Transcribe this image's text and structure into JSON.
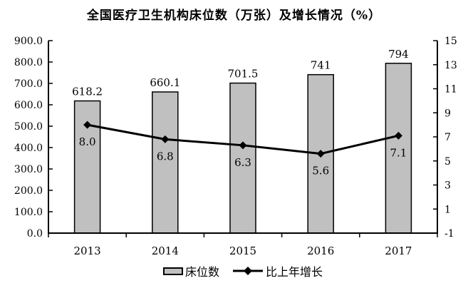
{
  "chart_data": {
    "type": "bar",
    "title": "全国医疗卫生机构床位数（万张）及增长情况（%）",
    "categories": [
      "2013",
      "2014",
      "2015",
      "2016",
      "2017"
    ],
    "series": [
      {
        "name": "床位数",
        "kind": "bar",
        "axis": "left",
        "values": [
          618.2,
          660.1,
          701.5,
          741,
          794
        ],
        "labels": [
          "618.2",
          "660.1",
          "701.5",
          "741",
          "794"
        ]
      },
      {
        "name": "比上年增长",
        "kind": "line",
        "axis": "right",
        "values": [
          8.0,
          6.8,
          6.3,
          5.6,
          7.1
        ],
        "labels": [
          "8.0",
          "6.8",
          "6.3",
          "5.6",
          "7.1"
        ]
      }
    ],
    "left_axis": {
      "min": 0,
      "max": 900,
      "step": 100,
      "tick_labels": [
        "0.0",
        "100.0",
        "200.0",
        "300.0",
        "400.0",
        "500.0",
        "600.0",
        "700.0",
        "800.0",
        "900.0"
      ]
    },
    "right_axis": {
      "min": -1,
      "max": 15,
      "step": 2,
      "tick_labels": [
        "-1",
        "1",
        "3",
        "5",
        "7",
        "9",
        "11",
        "13",
        "15"
      ]
    },
    "legend_position": "bottom",
    "grid": false,
    "colors": {
      "bar_fill": "#c0c0c0",
      "bar_border": "#000000",
      "line": "#000000",
      "marker": "#000000",
      "text": "#000000",
      "background": "#ffffff"
    }
  }
}
